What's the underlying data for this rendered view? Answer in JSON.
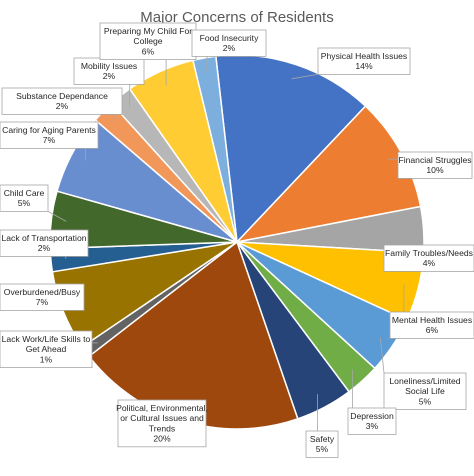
{
  "chart_data": {
    "type": "pie",
    "title": "Major Concerns of Residents",
    "slices": [
      {
        "name": "Physical Health Issues",
        "value": 14,
        "label": "14%",
        "color": "#4472C4"
      },
      {
        "name": "Financial Struggles",
        "value": 10,
        "label": "10%",
        "color": "#ED7D31"
      },
      {
        "name": "Family Troubles/Needs",
        "value": 4,
        "label": "4%",
        "color": "#A5A5A5"
      },
      {
        "name": "Mental Health Issues",
        "value": 6,
        "label": "6%",
        "color": "#FFC000"
      },
      {
        "name": "Loneliness/Limited Social Life",
        "value": 5,
        "label": "5%",
        "color": "#5B9BD5"
      },
      {
        "name": "Depression",
        "value": 3,
        "label": "3%",
        "color": "#70AD47"
      },
      {
        "name": "Safety",
        "value": 5,
        "label": "5%",
        "color": "#264478"
      },
      {
        "name": "Political, Environmental, or Cultural Issues and Trends",
        "value": 20,
        "label": "20%",
        "color": "#9E480E"
      },
      {
        "name": "Lack Work/Life Skills to Get Ahead",
        "value": 1,
        "label": "1%",
        "color": "#636363"
      },
      {
        "name": "Overburdened/Busy",
        "value": 7,
        "label": "7%",
        "color": "#997300"
      },
      {
        "name": "Lack of Transportation",
        "value": 2,
        "label": "2%",
        "color": "#255E91"
      },
      {
        "name": "Child Care",
        "value": 5,
        "label": "5%",
        "color": "#43682B"
      },
      {
        "name": "Caring for Aging Parents",
        "value": 7,
        "label": "7%",
        "color": "#698ED0"
      },
      {
        "name": "Substance Dependance",
        "value": 2,
        "label": "2%",
        "color": "#F1975A"
      },
      {
        "name": "Mobility Issues",
        "value": 2,
        "label": "2%",
        "color": "#B7B7B7"
      },
      {
        "name": "Preparing My Child For College",
        "value": 6,
        "label": "6%",
        "color": "#FFCD33"
      },
      {
        "name": "Food Insecurity",
        "value": 2,
        "label": "2%",
        "color": "#7CAFDD"
      }
    ]
  }
}
